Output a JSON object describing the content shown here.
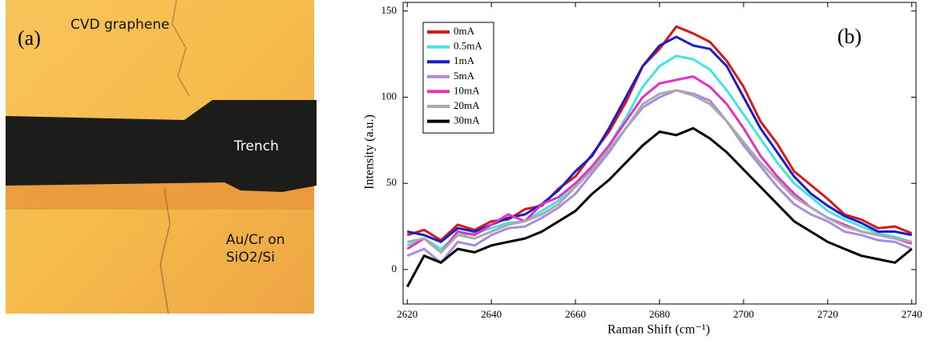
{
  "image_panel": {
    "label": "(a)",
    "annotations": [
      "CVD graphene",
      "Trench",
      "Au/Cr on",
      "SiO2/Si"
    ]
  },
  "chart_data": {
    "type": "line",
    "panel_label": "(b)",
    "xlabel": "Raman Shift (cm⁻¹)",
    "ylabel": "Intensity (a.u.)",
    "x": [
      2620,
      2624,
      2628,
      2632,
      2636,
      2640,
      2644,
      2648,
      2652,
      2656,
      2660,
      2664,
      2668,
      2672,
      2676,
      2680,
      2684,
      2688,
      2692,
      2696,
      2700,
      2704,
      2708,
      2712,
      2716,
      2720,
      2724,
      2728,
      2732,
      2736,
      2740
    ],
    "xlim": [
      2619,
      2741
    ],
    "xticks": [
      2620,
      2640,
      2660,
      2680,
      2700,
      2720,
      2740
    ],
    "ylim": [
      -20,
      155
    ],
    "yticks": [
      0,
      50,
      100,
      150
    ],
    "legend": "upper-left",
    "series": [
      {
        "name": "0mA",
        "color": "#d41a1a",
        "values": [
          20,
          23,
          17,
          26,
          23,
          28,
          29,
          35,
          37,
          47,
          54,
          67,
          80,
          97,
          118,
          128,
          141,
          137,
          132,
          121,
          106,
          86,
          73,
          57,
          49,
          41,
          32,
          29,
          24,
          25,
          21
        ]
      },
      {
        "name": "0.5mA",
        "color": "#44e4e4",
        "values": [
          14,
          18,
          12,
          20,
          21,
          24,
          27,
          28,
          34,
          40,
          48,
          58,
          72,
          88,
          106,
          118,
          124,
          122,
          116,
          104,
          90,
          76,
          62,
          50,
          42,
          34,
          29,
          25,
          21,
          19,
          16
        ]
      },
      {
        "name": "1mA",
        "color": "#1c1cc8",
        "values": [
          22,
          20,
          16,
          24,
          22,
          26,
          30,
          32,
          38,
          46,
          57,
          66,
          82,
          100,
          118,
          130,
          135,
          130,
          128,
          118,
          100,
          82,
          68,
          54,
          44,
          37,
          31,
          27,
          22,
          22,
          20
        ]
      },
      {
        "name": "5mA",
        "color": "#a88ce2",
        "values": [
          8,
          12,
          4,
          16,
          14,
          20,
          24,
          25,
          30,
          36,
          44,
          56,
          68,
          82,
          94,
          100,
          104,
          102,
          98,
          86,
          72,
          60,
          48,
          38,
          32,
          28,
          22,
          20,
          17,
          16,
          12
        ]
      },
      {
        "name": "10mA",
        "color": "#e232c4",
        "values": [
          12,
          18,
          10,
          22,
          20,
          26,
          32,
          28,
          38,
          42,
          50,
          60,
          72,
          86,
          100,
          108,
          110,
          112,
          106,
          96,
          82,
          66,
          54,
          44,
          36,
          30,
          26,
          22,
          20,
          18,
          15
        ]
      },
      {
        "name": "20mA",
        "color": "#aaaaaa",
        "values": [
          16,
          18,
          10,
          20,
          18,
          22,
          26,
          28,
          32,
          38,
          48,
          58,
          70,
          82,
          96,
          102,
          104,
          101,
          96,
          86,
          74,
          62,
          52,
          42,
          36,
          30,
          25,
          22,
          20,
          18,
          16
        ]
      },
      {
        "name": "30mA",
        "color": "#000000",
        "values": [
          -10,
          8,
          4,
          12,
          10,
          14,
          16,
          18,
          22,
          28,
          34,
          44,
          52,
          62,
          72,
          80,
          78,
          82,
          76,
          68,
          58,
          48,
          38,
          28,
          22,
          16,
          12,
          8,
          6,
          4,
          12
        ]
      }
    ]
  }
}
